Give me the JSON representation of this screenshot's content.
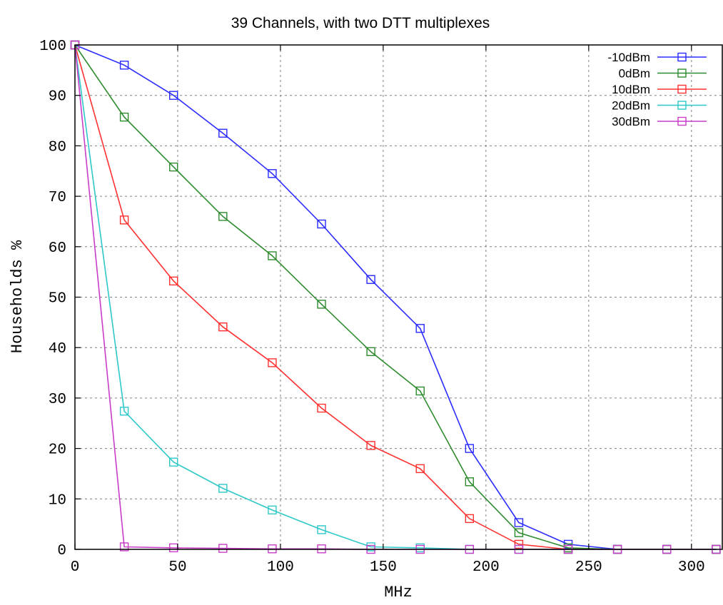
{
  "chart_data": {
    "type": "line",
    "title": "39 Channels, with two DTT multiplexes",
    "xlabel": "MHz",
    "ylabel": "Households %",
    "xlim": [
      0,
      315
    ],
    "ylim": [
      0,
      100
    ],
    "xticks": [
      0,
      50,
      100,
      150,
      200,
      250,
      300
    ],
    "yticks": [
      0,
      10,
      20,
      30,
      40,
      50,
      60,
      70,
      80,
      90,
      100
    ],
    "grid": true,
    "legend_position": "top-right",
    "marker": "open-square",
    "x": [
      0,
      24,
      48,
      72,
      96,
      120,
      144,
      168,
      192,
      216,
      240,
      264,
      288,
      312
    ],
    "series": [
      {
        "name": "-10dBm",
        "color": "#2b2bff",
        "values": [
          100,
          96,
          90,
          82.5,
          74.5,
          64.5,
          53.5,
          43.8,
          20,
          5.3,
          1,
          0,
          0,
          0
        ]
      },
      {
        "name": "0dBm",
        "color": "#2e8b2e",
        "values": [
          100,
          85.7,
          75.8,
          66,
          58.2,
          48.6,
          39.2,
          31.4,
          13.4,
          3.3,
          0.3,
          0,
          0,
          0
        ]
      },
      {
        "name": "10dBm",
        "color": "#ff3030",
        "values": [
          100,
          65.3,
          53.2,
          44.1,
          37,
          28,
          20.6,
          16,
          6.1,
          1,
          0,
          0,
          0,
          0
        ]
      },
      {
        "name": "20dBm",
        "color": "#2ec8c8",
        "values": [
          100,
          27.4,
          17.3,
          12.1,
          7.8,
          3.9,
          0.5,
          0.3,
          0,
          0,
          0,
          0,
          0,
          0
        ]
      },
      {
        "name": "30dBm",
        "color": "#c83cc8",
        "values": [
          100,
          0.5,
          0.3,
          0.2,
          0.1,
          0.1,
          0,
          0,
          0,
          0,
          0,
          0,
          0,
          0
        ]
      }
    ]
  }
}
